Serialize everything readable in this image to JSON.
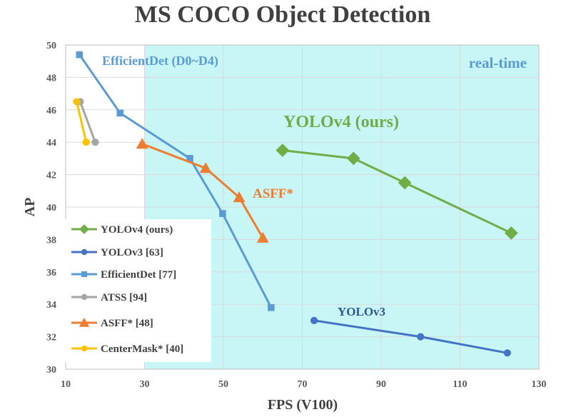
{
  "chart_data": {
    "type": "line",
    "title": "MS COCO Object Detection",
    "xlabel": "FPS (V100)",
    "ylabel": "AP",
    "xlim": [
      10,
      130
    ],
    "ylim": [
      30,
      50
    ],
    "xticks": [
      10,
      30,
      50,
      70,
      90,
      110,
      130
    ],
    "yticks": [
      30,
      32,
      34,
      36,
      38,
      40,
      42,
      44,
      46,
      48,
      50
    ],
    "realtime_region": {
      "x_start": 30,
      "label": "real-time",
      "color": "#C8F5F5"
    },
    "series": [
      {
        "name": "YOLOv4 (ours)",
        "legend": "YOLOv4 (ours)",
        "color": "#70AD47",
        "marker": "diamond",
        "x": [
          65,
          83,
          96,
          123
        ],
        "y": [
          43.5,
          43.0,
          41.5,
          38.4
        ]
      },
      {
        "name": "YOLOv3",
        "legend": "YOLOv3 [63]",
        "color": "#4472C4",
        "marker": "circle",
        "x": [
          73,
          100,
          122
        ],
        "y": [
          33.0,
          32.0,
          31.0
        ]
      },
      {
        "name": "EfficientDet",
        "legend": "EfficientDet [77]",
        "color": "#5B9BD5",
        "marker": "square",
        "x": [
          13.5,
          23.8,
          41.5,
          49.8,
          62.1
        ],
        "y": [
          49.4,
          45.8,
          43.0,
          39.6,
          33.8
        ]
      },
      {
        "name": "ATSS",
        "legend": "ATSS [94]",
        "color": "#A5A5A5",
        "marker": "circle",
        "x": [
          13.7,
          17.5
        ],
        "y": [
          46.5,
          44.0
        ]
      },
      {
        "name": "ASFF*",
        "legend": "ASFF* [48]",
        "color": "#ED7D31",
        "marker": "triangle",
        "x": [
          29.4,
          45.5,
          54.0,
          60.0
        ],
        "y": [
          43.9,
          42.4,
          40.6,
          38.1
        ]
      },
      {
        "name": "CenterMask*",
        "legend": "CenterMask* [40]",
        "color": "#FFC000",
        "marker": "circle",
        "x": [
          12.8,
          15.2
        ],
        "y": [
          46.5,
          44.0
        ]
      }
    ],
    "annotations": [
      {
        "text": "EfficientDet (D0~D4)",
        "color": "#5B9BD5"
      },
      {
        "text": "YOLOv4 (ours)",
        "color": "#70AD47"
      },
      {
        "text": "ASFF*",
        "color": "#ED7D31"
      },
      {
        "text": "YOLOv3",
        "color": "#2F5597"
      }
    ]
  }
}
